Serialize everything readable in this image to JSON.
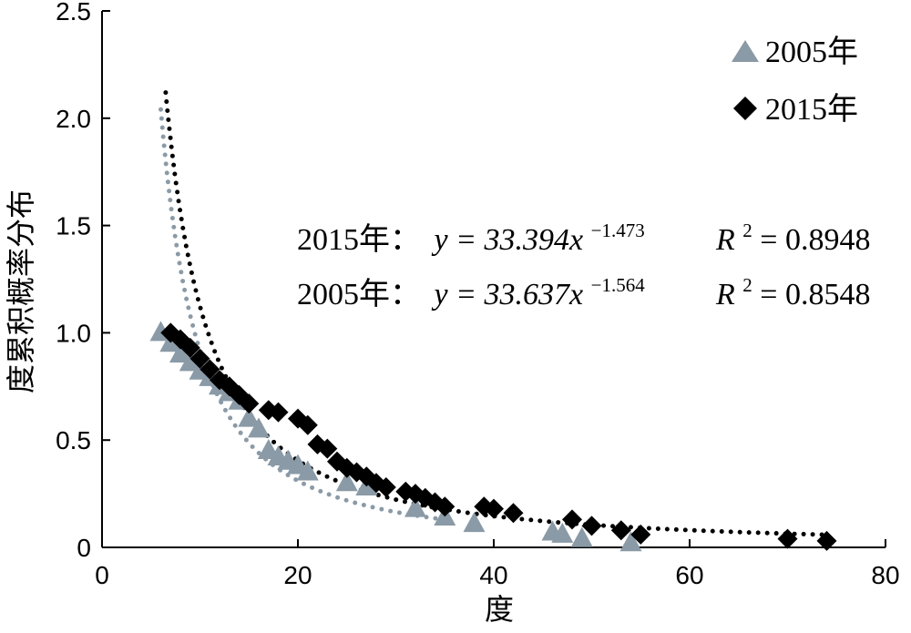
{
  "chart_data": {
    "type": "scatter",
    "xlabel": "度",
    "ylabel": "度累积概率分布",
    "xlim": [
      0,
      80
    ],
    "ylim": [
      0,
      2.5
    ],
    "x_ticks": [
      "0",
      "20",
      "40",
      "60",
      "80"
    ],
    "y_ticks": [
      "0",
      "0.5",
      "1.0",
      "1.5",
      "2.0",
      "2.5"
    ],
    "grid": false,
    "legend_position": "top-right",
    "series": [
      {
        "name": "2005年",
        "marker": "triangle",
        "color": "#8a9aa6",
        "points": [
          [
            6,
            1.0
          ],
          [
            7,
            0.95
          ],
          [
            8,
            0.9
          ],
          [
            9,
            0.86
          ],
          [
            10,
            0.82
          ],
          [
            11,
            0.79
          ],
          [
            12,
            0.75
          ],
          [
            13,
            0.72
          ],
          [
            14,
            0.68
          ],
          [
            15,
            0.6
          ],
          [
            16,
            0.55
          ],
          [
            17,
            0.45
          ],
          [
            18,
            0.42
          ],
          [
            19,
            0.4
          ],
          [
            20,
            0.38
          ],
          [
            21,
            0.35
          ],
          [
            25,
            0.3
          ],
          [
            27,
            0.28
          ],
          [
            32,
            0.18
          ],
          [
            35,
            0.14
          ],
          [
            38,
            0.11
          ],
          [
            46,
            0.07
          ],
          [
            47,
            0.06
          ],
          [
            49,
            0.04
          ],
          [
            54,
            0.02
          ]
        ],
        "fit": {
          "a": 33.637,
          "b": -1.564,
          "x_range": [
            6,
            35
          ],
          "color": "#8a9aa6"
        }
      },
      {
        "name": "2015年",
        "marker": "diamond",
        "color": "#000000",
        "points": [
          [
            7,
            1.0
          ],
          [
            8,
            0.97
          ],
          [
            9,
            0.93
          ],
          [
            10,
            0.88
          ],
          [
            11,
            0.83
          ],
          [
            12,
            0.78
          ],
          [
            13,
            0.75
          ],
          [
            14,
            0.71
          ],
          [
            15,
            0.67
          ],
          [
            17,
            0.64
          ],
          [
            18,
            0.63
          ],
          [
            20,
            0.6
          ],
          [
            21,
            0.57
          ],
          [
            22,
            0.48
          ],
          [
            23,
            0.46
          ],
          [
            24,
            0.4
          ],
          [
            25,
            0.37
          ],
          [
            26,
            0.35
          ],
          [
            27,
            0.33
          ],
          [
            28,
            0.3
          ],
          [
            29,
            0.28
          ],
          [
            31,
            0.26
          ],
          [
            32,
            0.25
          ],
          [
            33,
            0.23
          ],
          [
            34,
            0.21
          ],
          [
            35,
            0.19
          ],
          [
            39,
            0.19
          ],
          [
            40,
            0.18
          ],
          [
            42,
            0.16
          ],
          [
            48,
            0.13
          ],
          [
            50,
            0.1
          ],
          [
            53,
            0.08
          ],
          [
            55,
            0.06
          ],
          [
            70,
            0.04
          ],
          [
            74,
            0.03
          ]
        ],
        "fit": {
          "a": 33.394,
          "b": -1.473,
          "x_range": [
            6.5,
            74
          ],
          "color": "#000000"
        }
      }
    ],
    "annotations": [
      {
        "label": "2015年：",
        "y_eq": "y = 33.394x",
        "exponent": "−1.473",
        "r_label": "R",
        "r_sup": "2",
        "r_value": "= 0.8948"
      },
      {
        "label": "2005年：",
        "y_eq": "y = 33.637x",
        "exponent": "−1.564",
        "r_label": "R",
        "r_sup": "2",
        "r_value": "= 0.8548"
      }
    ]
  }
}
